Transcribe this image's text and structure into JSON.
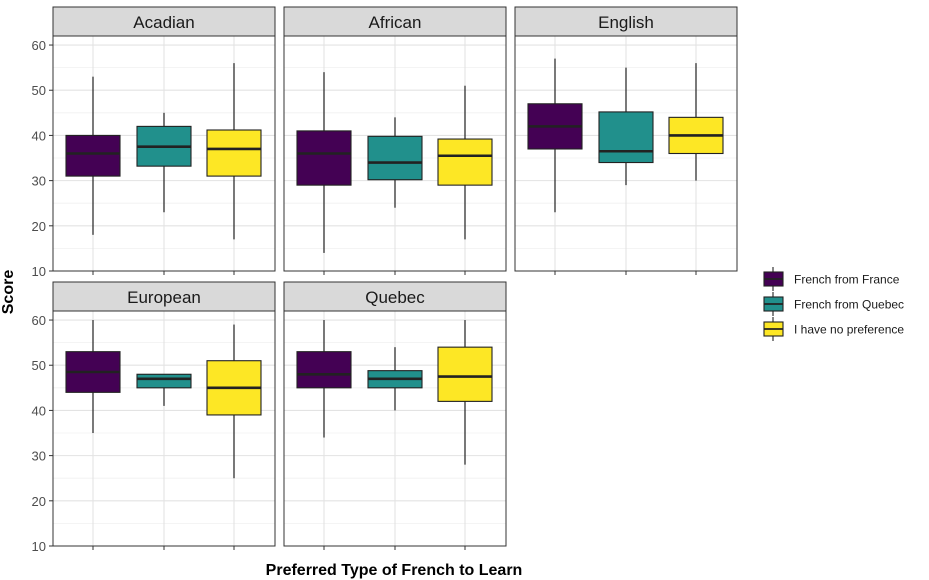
{
  "chart_data": {
    "type": "boxplot",
    "facet_layout": "3 columns x 2 rows",
    "xlabel": "Preferred Type of French to Learn",
    "ylabel": "Score",
    "ylim": [
      10,
      62
    ],
    "yticks": [
      10,
      20,
      30,
      40,
      50,
      60
    ],
    "grid": true,
    "legend_position": "right",
    "groups": [
      "French from France",
      "French from Quebec",
      "I have no preference"
    ],
    "colors": {
      "French from France": "#440154",
      "French from Quebec": "#21908C",
      "I have no preference": "#FDE725"
    },
    "panels": [
      {
        "title": "Acadian",
        "boxes": [
          {
            "group": "French from France",
            "min": 18,
            "q1": 31,
            "median": 36,
            "q3": 40,
            "max": 53
          },
          {
            "group": "French from Quebec",
            "min": 23,
            "q1": 33.2,
            "median": 37.5,
            "q3": 42,
            "max": 45
          },
          {
            "group": "I have no preference",
            "min": 17,
            "q1": 31,
            "median": 37,
            "q3": 41.2,
            "max": 56
          }
        ]
      },
      {
        "title": "African",
        "boxes": [
          {
            "group": "French from France",
            "min": 14,
            "q1": 29,
            "median": 36,
            "q3": 41,
            "max": 54
          },
          {
            "group": "French from Quebec",
            "min": 24,
            "q1": 30.2,
            "median": 34,
            "q3": 39.8,
            "max": 44
          },
          {
            "group": "I have no preference",
            "min": 17,
            "q1": 29,
            "median": 35.5,
            "q3": 39.2,
            "max": 51
          }
        ]
      },
      {
        "title": "English",
        "boxes": [
          {
            "group": "French from France",
            "min": 23,
            "q1": 37,
            "median": 42,
            "q3": 47,
            "max": 57
          },
          {
            "group": "French from Quebec",
            "min": 29,
            "q1": 34,
            "median": 36.5,
            "q3": 45.2,
            "max": 55
          },
          {
            "group": "I have no preference",
            "min": 30,
            "q1": 36,
            "median": 40,
            "q3": 44,
            "max": 56
          }
        ]
      },
      {
        "title": "European",
        "boxes": [
          {
            "group": "French from France",
            "min": 35,
            "q1": 44,
            "median": 48.5,
            "q3": 53,
            "max": 60
          },
          {
            "group": "French from Quebec",
            "min": 41,
            "q1": 45,
            "median": 47,
            "q3": 48,
            "max": 48
          },
          {
            "group": "I have no preference",
            "min": 25,
            "q1": 39,
            "median": 45,
            "q3": 51,
            "max": 59
          }
        ]
      },
      {
        "title": "Quebec",
        "boxes": [
          {
            "group": "French from France",
            "min": 34,
            "q1": 45,
            "median": 48,
            "q3": 53,
            "max": 60
          },
          {
            "group": "French from Quebec",
            "min": 40,
            "q1": 45,
            "median": 47,
            "q3": 48.8,
            "max": 54
          },
          {
            "group": "I have no preference",
            "min": 28,
            "q1": 42,
            "median": 47.5,
            "q3": 54,
            "max": 60
          }
        ]
      }
    ]
  }
}
